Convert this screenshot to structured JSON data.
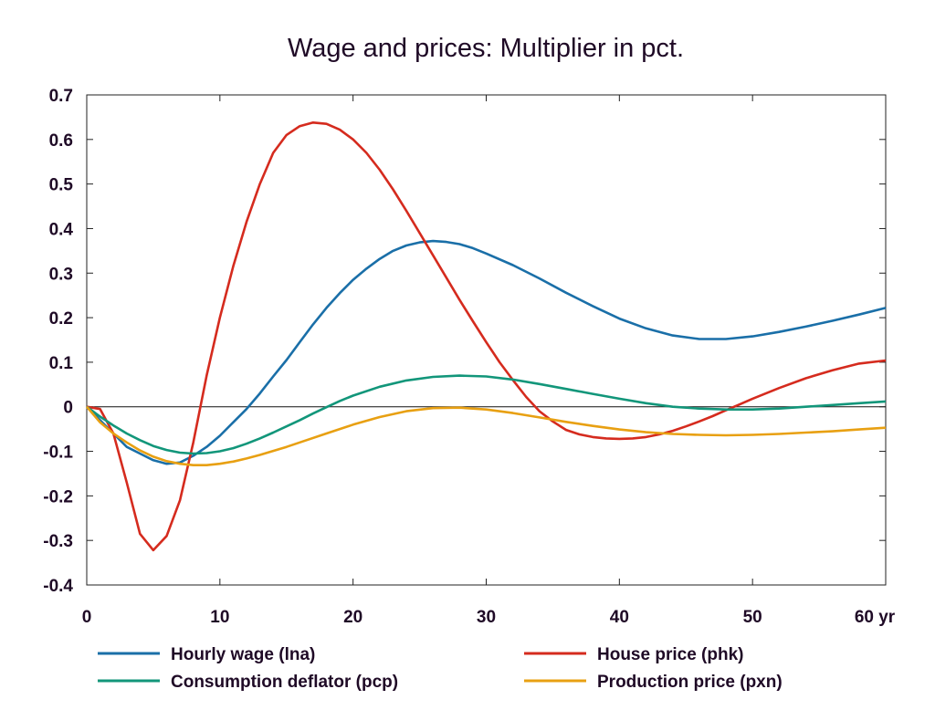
{
  "chart_data": {
    "type": "line",
    "title": "Wage and prices: Multiplier in pct.",
    "xlabel": "",
    "ylabel": "",
    "x_unit_label": "yr",
    "xlim": [
      0,
      60
    ],
    "ylim": [
      -0.4,
      0.7
    ],
    "x_ticks": [
      0,
      10,
      20,
      30,
      40,
      50,
      60
    ],
    "x_tick_labels": [
      "0",
      "10",
      "20",
      "30",
      "40",
      "50",
      "60 yr"
    ],
    "y_ticks": [
      -0.4,
      -0.3,
      -0.2,
      -0.1,
      0,
      0.1,
      0.2,
      0.3,
      0.4,
      0.5,
      0.6,
      0.7
    ],
    "y_tick_labels": [
      "-0.4",
      "-0.3",
      "-0.2",
      "-0.1",
      "0",
      "0.1",
      "0.2",
      "0.3",
      "0.4",
      "0.5",
      "0.6",
      "0.7"
    ],
    "grid": false,
    "zero_line": true,
    "legend_position": "bottom",
    "series": [
      {
        "name": "Hourly wage (lna)",
        "color": "#1a6fa8",
        "x": [
          0,
          1,
          2,
          3,
          4,
          5,
          6,
          7,
          8,
          9,
          10,
          11,
          12,
          13,
          14,
          15,
          16,
          17,
          18,
          19,
          20,
          21,
          22,
          23,
          24,
          25,
          26,
          27,
          28,
          29,
          30,
          32,
          34,
          36,
          38,
          40,
          42,
          44,
          46,
          48,
          50,
          52,
          54,
          56,
          58,
          60
        ],
        "y": [
          0,
          -0.03,
          -0.06,
          -0.09,
          -0.105,
          -0.12,
          -0.128,
          -0.125,
          -0.11,
          -0.09,
          -0.065,
          -0.035,
          -0.005,
          0.03,
          0.068,
          0.105,
          0.145,
          0.185,
          0.222,
          0.255,
          0.285,
          0.31,
          0.332,
          0.35,
          0.362,
          0.369,
          0.372,
          0.37,
          0.365,
          0.356,
          0.344,
          0.318,
          0.288,
          0.256,
          0.226,
          0.198,
          0.176,
          0.16,
          0.152,
          0.152,
          0.158,
          0.168,
          0.18,
          0.193,
          0.207,
          0.222
        ]
      },
      {
        "name": "House price (phk)",
        "color": "#d52b1e",
        "x": [
          0,
          1,
          2,
          3,
          4,
          5,
          6,
          7,
          8,
          9,
          10,
          11,
          12,
          13,
          14,
          15,
          16,
          17,
          18,
          19,
          20,
          21,
          22,
          23,
          24,
          25,
          26,
          27,
          28,
          29,
          30,
          31,
          32,
          33,
          34,
          35,
          36,
          37,
          38,
          39,
          40,
          41,
          42,
          43,
          44,
          45,
          46,
          47,
          48,
          49,
          50,
          52,
          54,
          56,
          58,
          60
        ],
        "y": [
          0,
          -0.005,
          -0.06,
          -0.17,
          -0.285,
          -0.322,
          -0.29,
          -0.21,
          -0.08,
          0.07,
          0.2,
          0.315,
          0.415,
          0.5,
          0.57,
          0.61,
          0.63,
          0.638,
          0.635,
          0.622,
          0.6,
          0.57,
          0.532,
          0.488,
          0.44,
          0.39,
          0.34,
          0.29,
          0.24,
          0.192,
          0.145,
          0.1,
          0.06,
          0.022,
          -0.01,
          -0.033,
          -0.052,
          -0.062,
          -0.068,
          -0.071,
          -0.072,
          -0.071,
          -0.068,
          -0.062,
          -0.054,
          -0.044,
          -0.033,
          -0.021,
          -0.008,
          0.005,
          0.018,
          0.042,
          0.064,
          0.082,
          0.097,
          0.104
        ]
      },
      {
        "name": "Consumption deflator (pcp)",
        "color": "#12967a",
        "x": [
          0,
          1,
          2,
          3,
          4,
          5,
          6,
          7,
          8,
          9,
          10,
          11,
          12,
          13,
          14,
          15,
          16,
          17,
          18,
          19,
          20,
          22,
          24,
          26,
          28,
          30,
          32,
          34,
          36,
          38,
          40,
          42,
          44,
          46,
          48,
          50,
          52,
          54,
          56,
          58,
          60
        ],
        "y": [
          0,
          -0.022,
          -0.042,
          -0.06,
          -0.075,
          -0.088,
          -0.097,
          -0.103,
          -0.105,
          -0.104,
          -0.1,
          -0.093,
          -0.083,
          -0.071,
          -0.058,
          -0.044,
          -0.03,
          -0.015,
          -0.001,
          0.013,
          0.025,
          0.045,
          0.059,
          0.067,
          0.07,
          0.068,
          0.061,
          0.051,
          0.04,
          0.029,
          0.018,
          0.008,
          0.0,
          -0.004,
          -0.006,
          -0.006,
          -0.004,
          0.0,
          0.004,
          0.008,
          0.012
        ]
      },
      {
        "name": "Production price (pxn)",
        "color": "#e8a012",
        "x": [
          0,
          1,
          2,
          3,
          4,
          5,
          6,
          7,
          8,
          9,
          10,
          11,
          12,
          13,
          14,
          15,
          16,
          18,
          20,
          22,
          24,
          26,
          28,
          30,
          32,
          34,
          36,
          38,
          40,
          42,
          44,
          46,
          48,
          50,
          52,
          54,
          56,
          58,
          60
        ],
        "y": [
          0,
          -0.035,
          -0.06,
          -0.08,
          -0.098,
          -0.112,
          -0.122,
          -0.128,
          -0.131,
          -0.131,
          -0.128,
          -0.123,
          -0.116,
          -0.108,
          -0.099,
          -0.09,
          -0.08,
          -0.06,
          -0.04,
          -0.023,
          -0.01,
          -0.003,
          -0.002,
          -0.006,
          -0.014,
          -0.024,
          -0.034,
          -0.043,
          -0.051,
          -0.057,
          -0.061,
          -0.063,
          -0.064,
          -0.063,
          -0.061,
          -0.058,
          -0.055,
          -0.051,
          -0.047
        ]
      }
    ]
  }
}
